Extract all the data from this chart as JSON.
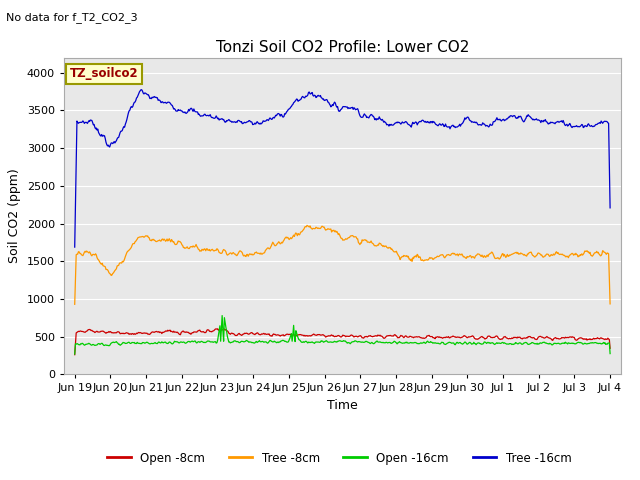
{
  "title": "Tonzi Soil CO2 Profile: Lower CO2",
  "no_data_text": "No data for f_T2_CO2_3",
  "ylabel": "Soil CO2 (ppm)",
  "xlabel": "Time",
  "legend_label": "TZ_soilco2",
  "ylim": [
    0,
    4200
  ],
  "yticks": [
    0,
    500,
    1000,
    1500,
    2000,
    2500,
    3000,
    3500,
    4000
  ],
  "bg_color": "#e8e8e8",
  "fig_color": "#ffffff",
  "series_colors": {
    "open_8cm": "#cc0000",
    "tree_8cm": "#ff9900",
    "open_16cm": "#00cc00",
    "tree_16cm": "#0000cc"
  },
  "legend_entries": [
    "Open -8cm",
    "Tree -8cm",
    "Open -16cm",
    "Tree -16cm"
  ],
  "x_tick_labels": [
    "Jun 19",
    "Jun 20",
    "Jun 21",
    "Jun 22",
    "Jun 23",
    "Jun 24",
    "Jun 25",
    "Jun 26",
    "Jun 27",
    "Jun 28",
    "Jun 29",
    "Jun 30",
    "Jul 1",
    "Jul 2",
    "Jul 3",
    "Jul 4"
  ],
  "n_points": 720
}
